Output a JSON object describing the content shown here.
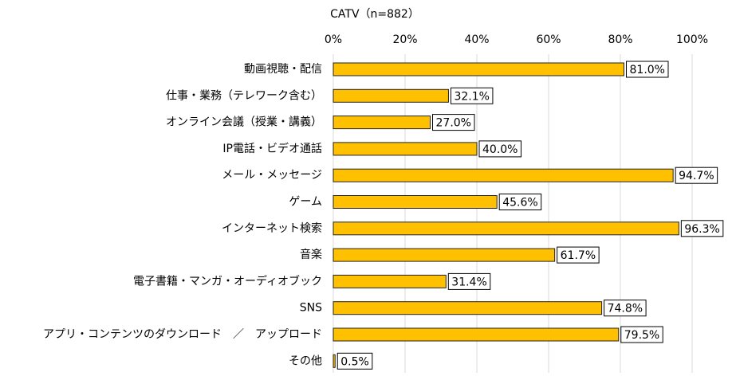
{
  "chart_data": {
    "type": "bar",
    "orientation": "horizontal",
    "title": "CATV（n=882）",
    "categories": [
      "動画視聴・配信",
      "仕事・業務（テレワーク含む）",
      "オンライン会議（授業・講義）",
      "IP電話・ビデオ通話",
      "メール・メッセージ",
      "ゲーム",
      "インターネット検索",
      "音楽",
      "電子書籍・マンガ・オーディオブック",
      "SNS",
      "アプリ・コンテンツのダウンロード　／　アップロード",
      "その他"
    ],
    "values": [
      81.0,
      32.1,
      27.0,
      40.0,
      94.7,
      45.6,
      96.3,
      61.7,
      31.4,
      74.8,
      79.5,
      0.5
    ],
    "value_labels": [
      "81.0%",
      "32.1%",
      "27.0%",
      "40.0%",
      "94.7%",
      "45.6%",
      "96.3%",
      "61.7%",
      "31.4%",
      "74.8%",
      "79.5%",
      "0.5%"
    ],
    "color": "#ffc000",
    "xlim": [
      0,
      100
    ],
    "xticks": [
      {
        "value": 0,
        "label": "0%"
      },
      {
        "value": 20,
        "label": "20%"
      },
      {
        "value": 40,
        "label": "40%"
      },
      {
        "value": 60,
        "label": "60%"
      },
      {
        "value": 80,
        "label": "80%"
      },
      {
        "value": 100,
        "label": "100%"
      }
    ],
    "grid": true
  }
}
